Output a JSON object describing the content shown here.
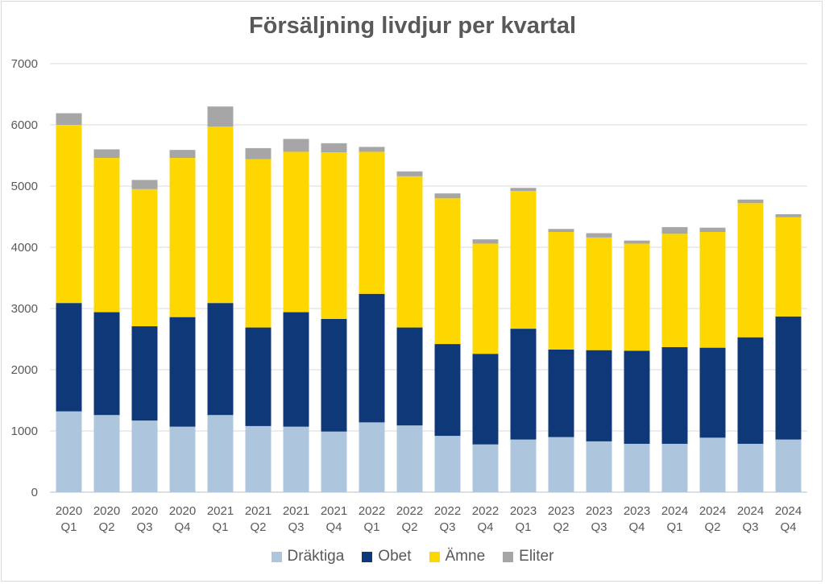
{
  "chart_data": {
    "type": "bar",
    "stacked": true,
    "title": "Försäljning livdjur per kvartal",
    "xlabel": "",
    "ylabel": "",
    "ylim": [
      0,
      7000
    ],
    "yticks": [
      0,
      1000,
      2000,
      3000,
      4000,
      5000,
      6000,
      7000
    ],
    "grid": true,
    "legend_position": "bottom",
    "categories": [
      {
        "year": "2020",
        "quarter": "Q1"
      },
      {
        "year": "2020",
        "quarter": "Q2"
      },
      {
        "year": "2020",
        "quarter": "Q3"
      },
      {
        "year": "2020",
        "quarter": "Q4"
      },
      {
        "year": "2021",
        "quarter": "Q1"
      },
      {
        "year": "2021",
        "quarter": "Q2"
      },
      {
        "year": "2021",
        "quarter": "Q3"
      },
      {
        "year": "2021",
        "quarter": "Q4"
      },
      {
        "year": "2022",
        "quarter": "Q1"
      },
      {
        "year": "2022",
        "quarter": "Q2"
      },
      {
        "year": "2022",
        "quarter": "Q3"
      },
      {
        "year": "2022",
        "quarter": "Q4"
      },
      {
        "year": "2023",
        "quarter": "Q1"
      },
      {
        "year": "2023",
        "quarter": "Q2"
      },
      {
        "year": "2023",
        "quarter": "Q3"
      },
      {
        "year": "2023",
        "quarter": "Q4"
      },
      {
        "year": "2024",
        "quarter": "Q1"
      },
      {
        "year": "2024",
        "quarter": "Q2"
      },
      {
        "year": "2024",
        "quarter": "Q3"
      },
      {
        "year": "2024",
        "quarter": "Q4"
      }
    ],
    "series": [
      {
        "name": "Dräktiga",
        "color": "#adc6de",
        "values": [
          1320,
          1260,
          1170,
          1070,
          1260,
          1080,
          1070,
          990,
          1140,
          1090,
          920,
          780,
          860,
          900,
          830,
          790,
          790,
          890,
          790,
          860
        ]
      },
      {
        "name": "Obet",
        "color": "#0e3878",
        "values": [
          1770,
          1680,
          1540,
          1790,
          1830,
          1610,
          1870,
          1840,
          2100,
          1600,
          1500,
          1480,
          1810,
          1430,
          1490,
          1520,
          1580,
          1470,
          1740,
          2010
        ]
      },
      {
        "name": "Ämne",
        "color": "#ffd700",
        "values": [
          2910,
          2520,
          2240,
          2600,
          2880,
          2750,
          2620,
          2720,
          2320,
          2470,
          2380,
          1800,
          2250,
          1920,
          1840,
          1750,
          1850,
          1890,
          2190,
          1620
        ]
      },
      {
        "name": "Eliter",
        "color": "#a6a6a6",
        "values": [
          190,
          140,
          150,
          130,
          330,
          180,
          210,
          150,
          80,
          80,
          80,
          70,
          50,
          50,
          70,
          50,
          110,
          70,
          60,
          50
        ]
      }
    ]
  }
}
